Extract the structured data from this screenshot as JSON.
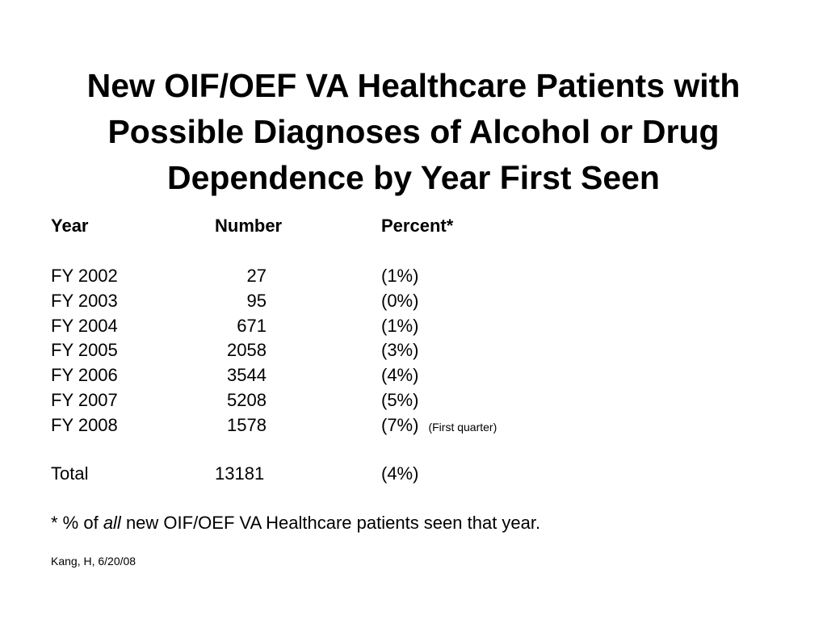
{
  "slide": {
    "title_lines": [
      "New OIF/OEF VA Healthcare Patients with",
      "Possible Diagnoses of Alcohol or Drug",
      "Dependence by Year First Seen"
    ]
  },
  "table": {
    "headers": {
      "year": "Year",
      "number": "Number",
      "percent": "Percent*"
    },
    "rows": [
      {
        "year": "FY 2002",
        "number": "27",
        "percent": "(1%)",
        "note": ""
      },
      {
        "year": "FY 2003",
        "number": "95",
        "percent": "(0%)",
        "note": ""
      },
      {
        "year": "FY 2004",
        "number": "671",
        "percent": "(1%)",
        "note": ""
      },
      {
        "year": "FY 2005",
        "number": "2058",
        "percent": "(3%)",
        "note": ""
      },
      {
        "year": "FY 2006",
        "number": "3544",
        "percent": "(4%)",
        "note": ""
      },
      {
        "year": "FY 2007",
        "number": "5208",
        "percent": "(5%)",
        "note": ""
      },
      {
        "year": "FY 2008",
        "number": "1578",
        "percent": "(7%)",
        "note": "(First quarter)"
      }
    ],
    "total": {
      "label": "Total",
      "number": "13181",
      "percent": "(4%)"
    }
  },
  "footnote": {
    "prefix": "* % of ",
    "emphasis": "all",
    "suffix": " new OIF/OEF VA Healthcare patients seen that year."
  },
  "source": "Kang, H, 6/20/08"
}
